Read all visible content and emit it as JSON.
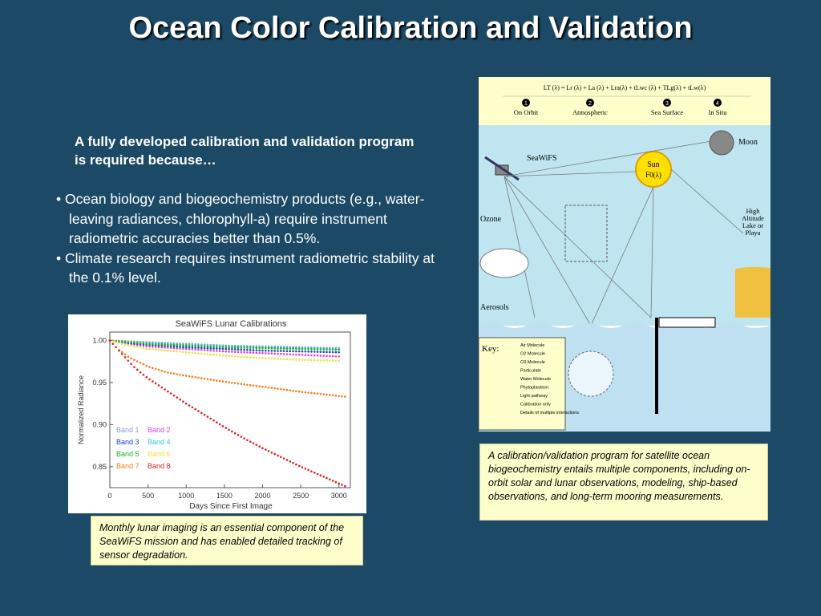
{
  "slide": {
    "title": "Ocean Color Calibration and Validation",
    "intro": "A fully developed calibration and validation program is required because…",
    "bullets": [
      "• Ocean biology and biogeochemistry products (e.g., water-leaving radiances, chlorophyll-a) require instrument radiometric accuracies better than 0.5%.",
      "• Climate research requires instrument radiometric stability at the 0.1% level."
    ],
    "caption_left": "Monthly lunar imaging is an essential component of the SeaWiFS mission and has enabled detailed tracking of sensor degradation.",
    "caption_right": "A calibration/validation program for satellite ocean biogeochemistry entails multiple components, including on-orbit solar and lunar observations, modeling, ship-based observations, and long-term mooring measurements.",
    "colors": {
      "background": "#1c4a66",
      "caption_bg": "#ffffcc",
      "diagram_sky": "#ffffcc",
      "diagram_ocean": "#bfe0f0"
    }
  },
  "diagram": {
    "equation": "LT (λ) = Lr (λ) + La (λ) + Lra(λ) + tLwc (λ) + TLg(λ) + tLw(λ)",
    "steps": [
      {
        "num": "1",
        "label": "On Orbit"
      },
      {
        "num": "2",
        "label": "Atmospheric"
      },
      {
        "num": "3",
        "label": "Sea Surface"
      },
      {
        "num": "4",
        "label": "In Situ"
      }
    ],
    "labels": {
      "moon": "Moon",
      "seawifs": "SeaWiFS",
      "sun_line1": "Sun",
      "sun_line2": "F0(λ)",
      "ozone": "Ozone",
      "aerosols": "Aerosols",
      "lake_line1": "High",
      "lake_line2": "Altitude",
      "lake_line3": "Lake or",
      "lake_line4": "Playa",
      "key_title": "Key:"
    },
    "key_items": [
      "Air Molecule",
      "O2 Molecule",
      "O3 Molecule",
      "Particulate",
      "Water Molecule",
      "Phytoplankton",
      "Light pathway",
      "Calibration only",
      "Details of multiple interactions"
    ]
  },
  "chart_data": {
    "type": "scatter",
    "title": "SeaWiFS Lunar Calibrations",
    "xlabel": "Days Since First Image",
    "ylabel": "Normalized Radiance",
    "xlim": [
      0,
      3150
    ],
    "ylim": [
      0.825,
      1.01
    ],
    "xticks": [
      0,
      500,
      1000,
      1500,
      2000,
      2500,
      3000
    ],
    "yticks": [
      0.85,
      0.9,
      0.95,
      1.0
    ],
    "ytick_labels": [
      "0.85",
      "0.90",
      "0.95",
      "1.00"
    ],
    "grid": false,
    "legend_position": "lower-left",
    "series": [
      {
        "name": "Band 1",
        "color": "#8c9cd8",
        "x": [
          0,
          250,
          500,
          1000,
          1500,
          2000,
          2500,
          3000
        ],
        "y": [
          1.0,
          0.999,
          0.998,
          0.996,
          0.994,
          0.993,
          0.992,
          0.991
        ]
      },
      {
        "name": "Band 2",
        "color": "#e040e0",
        "x": [
          0,
          250,
          500,
          1000,
          1500,
          2000,
          2500,
          3000
        ],
        "y": [
          1.0,
          0.996,
          0.993,
          0.99,
          0.987,
          0.985,
          0.983,
          0.981
        ]
      },
      {
        "name": "Band 3",
        "color": "#2040c0",
        "x": [
          0,
          250,
          500,
          1000,
          1500,
          2000,
          2500,
          3000
        ],
        "y": [
          1.0,
          0.997,
          0.995,
          0.992,
          0.99,
          0.988,
          0.987,
          0.986
        ]
      },
      {
        "name": "Band 4",
        "color": "#30c8e0",
        "x": [
          0,
          250,
          500,
          1000,
          1500,
          2000,
          2500,
          3000
        ],
        "y": [
          1.0,
          0.998,
          0.997,
          0.995,
          0.993,
          0.992,
          0.991,
          0.99
        ]
      },
      {
        "name": "Band 5",
        "color": "#20b020",
        "x": [
          0,
          250,
          500,
          1000,
          1500,
          2000,
          2500,
          3000
        ],
        "y": [
          1.0,
          0.998,
          0.996,
          0.994,
          0.992,
          0.991,
          0.99,
          0.989
        ]
      },
      {
        "name": "Band 6",
        "color": "#f0e040",
        "x": [
          0,
          250,
          500,
          1000,
          1500,
          2000,
          2500,
          3000
        ],
        "y": [
          1.0,
          0.994,
          0.99,
          0.986,
          0.982,
          0.979,
          0.977,
          0.976
        ]
      },
      {
        "name": "Band 7",
        "color": "#f08020",
        "x": [
          0,
          100,
          250,
          500,
          750,
          1000,
          1500,
          2000,
          2500,
          3000,
          3100
        ],
        "y": [
          1.0,
          0.99,
          0.98,
          0.969,
          0.962,
          0.958,
          0.951,
          0.945,
          0.939,
          0.934,
          0.933
        ]
      },
      {
        "name": "Band 8",
        "color": "#e02020",
        "x": [
          0,
          50,
          100,
          200,
          300,
          400,
          500,
          750,
          1000,
          1250,
          1500,
          1750,
          2000,
          2250,
          2500,
          2750,
          3000,
          3100
        ],
        "y": [
          1.0,
          0.995,
          0.99,
          0.98,
          0.97,
          0.962,
          0.955,
          0.94,
          0.925,
          0.911,
          0.897,
          0.884,
          0.872,
          0.861,
          0.85,
          0.84,
          0.83,
          0.826
        ]
      }
    ]
  }
}
